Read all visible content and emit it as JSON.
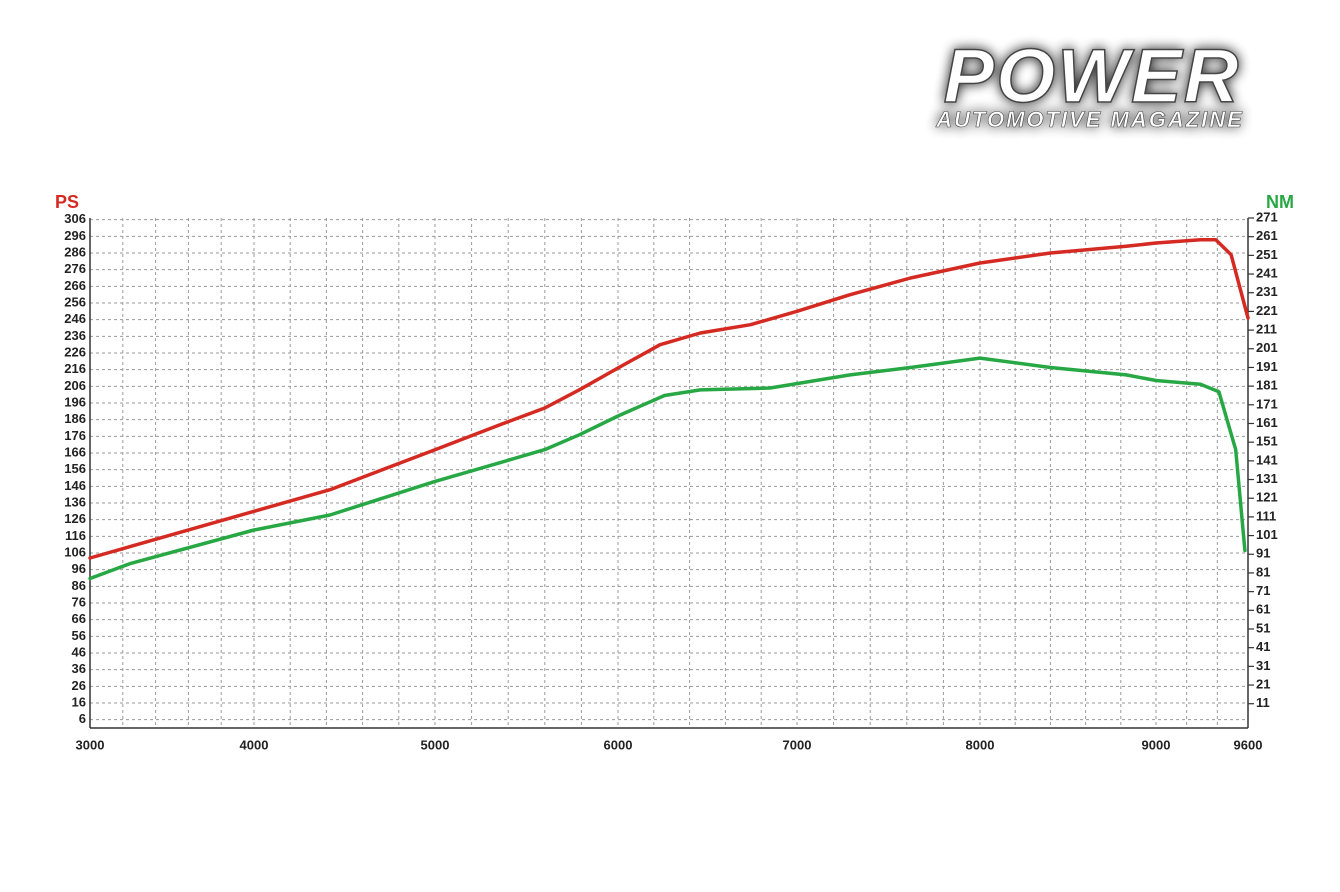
{
  "logo": {
    "title": "POWER",
    "subtitle": "AUTOMOTIVE MAGAZINE"
  },
  "chart_data": {
    "type": "line",
    "xlim": [
      3000,
      9600
    ],
    "xticks": [
      3000,
      4000,
      5000,
      6000,
      7000,
      8000,
      9000,
      9600
    ],
    "ylim": [
      1,
      307
    ],
    "yticks": [
      6,
      16,
      26,
      36,
      46,
      56,
      66,
      76,
      86,
      96,
      106,
      116,
      126,
      136,
      146,
      156,
      166,
      176,
      186,
      196,
      206,
      216,
      226,
      236,
      246,
      256,
      266,
      276,
      286,
      296,
      306
    ],
    "y2lim": [
      -2,
      271
    ],
    "y2ticks": [
      11,
      21,
      31,
      41,
      51,
      61,
      71,
      81,
      91,
      101,
      111,
      121,
      131,
      141,
      151,
      161,
      171,
      181,
      191,
      201,
      211,
      221,
      231,
      241,
      251,
      261,
      271
    ],
    "grid": true,
    "series": [
      {
        "name": "PS",
        "color": "#d42a22",
        "axis": "y",
        "x": [
          3000,
          4000,
          4420,
          5000,
          5355,
          5600,
          5790,
          6000,
          6235,
          6460,
          6740,
          7000,
          7290,
          7620,
          8000,
          8400,
          8830,
          9000,
          9290,
          9390,
          9490,
          9600
        ],
        "values": [
          103,
          131,
          144,
          168,
          183,
          193,
          204,
          217,
          231,
          238,
          243,
          251,
          261,
          271,
          280,
          286,
          290,
          292,
          294,
          294,
          285,
          247
        ]
      },
      {
        "name": "NM",
        "color": "#27a844",
        "axis": "y2",
        "x": [
          3000,
          3245,
          4000,
          4420,
          5000,
          5355,
          5600,
          5790,
          6000,
          6260,
          6460,
          6850,
          7290,
          7620,
          8000,
          8400,
          8830,
          9000,
          9290,
          9410,
          9520,
          9580
        ],
        "values": [
          78,
          86,
          104,
          112,
          130,
          140,
          147,
          155,
          165,
          176,
          179,
          180,
          187,
          191,
          196,
          191,
          187,
          184,
          182,
          178,
          147,
          93
        ]
      }
    ]
  }
}
